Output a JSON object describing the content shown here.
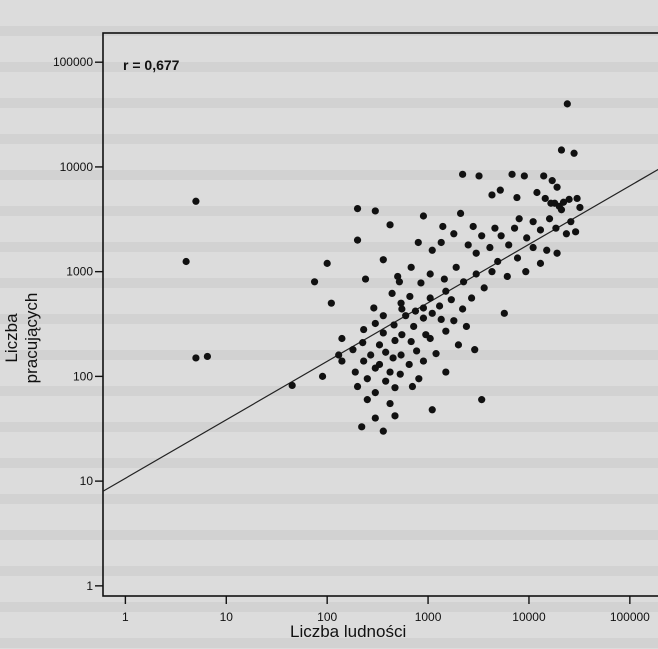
{
  "chart_data": {
    "type": "scatter",
    "xlabel": "Liczba ludności",
    "ylabel": "Liczba pracujących",
    "annotation": "r = 0,677",
    "x_scale": "log",
    "y_scale": "log",
    "xlim": [
      0.6,
      250000
    ],
    "ylim": [
      0.8,
      190000
    ],
    "x_ticks": [
      1,
      10,
      100,
      1000,
      10000,
      100000
    ],
    "x_tick_labels": [
      "1",
      "10",
      "100",
      "1000",
      "10000",
      "100000"
    ],
    "y_ticks": [
      1,
      10,
      100,
      1000,
      10000,
      100000
    ],
    "y_tick_labels": [
      "1",
      "10",
      "100",
      "1000",
      "10000",
      "100000"
    ],
    "trendline": {
      "x": [
        0.6,
        250000
      ],
      "y": [
        8,
        11000
      ]
    },
    "points": [
      [
        24000,
        40000
      ],
      [
        21000,
        14500
      ],
      [
        28000,
        13500
      ],
      [
        5,
        4700
      ],
      [
        4,
        1250
      ],
      [
        5,
        150
      ],
      [
        6.5,
        155
      ],
      [
        45,
        82
      ],
      [
        2200,
        8500
      ],
      [
        3200,
        8200
      ],
      [
        6800,
        8500
      ],
      [
        9000,
        8200
      ],
      [
        14000,
        8200
      ],
      [
        17000,
        7400
      ],
      [
        19000,
        6400
      ],
      [
        5200,
        6000
      ],
      [
        4300,
        5400
      ],
      [
        7600,
        5100
      ],
      [
        12000,
        5700
      ],
      [
        14500,
        5000
      ],
      [
        16500,
        4500
      ],
      [
        18000,
        4500
      ],
      [
        20000,
        4200
      ],
      [
        22000,
        4600
      ],
      [
        25000,
        4900
      ],
      [
        30000,
        5000
      ],
      [
        21000,
        3900
      ],
      [
        32000,
        4100
      ],
      [
        200,
        4000
      ],
      [
        300,
        3800
      ],
      [
        2100,
        3600
      ],
      [
        900,
        3400
      ],
      [
        8000,
        3200
      ],
      [
        11000,
        3000
      ],
      [
        16000,
        3200
      ],
      [
        26000,
        3000
      ],
      [
        420,
        2800
      ],
      [
        1400,
        2700
      ],
      [
        2800,
        2700
      ],
      [
        4600,
        2600
      ],
      [
        7200,
        2600
      ],
      [
        13000,
        2500
      ],
      [
        18500,
        2600
      ],
      [
        23500,
        2300
      ],
      [
        29000,
        2400
      ],
      [
        1800,
        2300
      ],
      [
        3400,
        2200
      ],
      [
        5300,
        2200
      ],
      [
        9500,
        2100
      ],
      [
        200,
        2000
      ],
      [
        800,
        1900
      ],
      [
        1350,
        1900
      ],
      [
        2500,
        1800
      ],
      [
        4100,
        1700
      ],
      [
        6300,
        1800
      ],
      [
        11000,
        1700
      ],
      [
        15000,
        1600
      ],
      [
        19000,
        1500
      ],
      [
        1100,
        1600
      ],
      [
        3000,
        1500
      ],
      [
        7700,
        1350
      ],
      [
        4900,
        1250
      ],
      [
        13000,
        1200
      ],
      [
        360,
        1300
      ],
      [
        100,
        1200
      ],
      [
        680,
        1100
      ],
      [
        1900,
        1100
      ],
      [
        4300,
        1000
      ],
      [
        9300,
        1000
      ],
      [
        1050,
        950
      ],
      [
        3000,
        950
      ],
      [
        6100,
        900
      ],
      [
        240,
        850
      ],
      [
        500,
        900
      ],
      [
        1450,
        850
      ],
      [
        75,
        800
      ],
      [
        520,
        800
      ],
      [
        850,
        780
      ],
      [
        2250,
        800
      ],
      [
        1500,
        650
      ],
      [
        3600,
        700
      ],
      [
        440,
        620
      ],
      [
        660,
        580
      ],
      [
        1050,
        560
      ],
      [
        1700,
        540
      ],
      [
        2700,
        560
      ],
      [
        540,
        500
      ],
      [
        900,
        450
      ],
      [
        1300,
        470
      ],
      [
        2200,
        440
      ],
      [
        290,
        450
      ],
      [
        550,
        440
      ],
      [
        750,
        420
      ],
      [
        1100,
        400
      ],
      [
        5700,
        400
      ],
      [
        360,
        380
      ],
      [
        600,
        380
      ],
      [
        900,
        360
      ],
      [
        1350,
        350
      ],
      [
        1800,
        340
      ],
      [
        300,
        320
      ],
      [
        460,
        310
      ],
      [
        720,
        300
      ],
      [
        2400,
        300
      ],
      [
        230,
        280
      ],
      [
        360,
        260
      ],
      [
        550,
        250
      ],
      [
        950,
        250
      ],
      [
        1500,
        270
      ],
      [
        140,
        230
      ],
      [
        225,
        210
      ],
      [
        330,
        200
      ],
      [
        470,
        220
      ],
      [
        680,
        215
      ],
      [
        1050,
        230
      ],
      [
        2000,
        200
      ],
      [
        180,
        180
      ],
      [
        270,
        160
      ],
      [
        380,
        170
      ],
      [
        540,
        160
      ],
      [
        770,
        175
      ],
      [
        1200,
        165
      ],
      [
        2900,
        180
      ],
      [
        140,
        140
      ],
      [
        230,
        140
      ],
      [
        330,
        130
      ],
      [
        450,
        150
      ],
      [
        650,
        130
      ],
      [
        900,
        140
      ],
      [
        190,
        110
      ],
      [
        300,
        120
      ],
      [
        420,
        110
      ],
      [
        250,
        95
      ],
      [
        380,
        90
      ],
      [
        530,
        105
      ],
      [
        810,
        95
      ],
      [
        1500,
        110
      ],
      [
        200,
        80
      ],
      [
        300,
        70
      ],
      [
        470,
        78
      ],
      [
        700,
        80
      ],
      [
        250,
        60
      ],
      [
        420,
        55
      ],
      [
        3400,
        60
      ],
      [
        1100,
        48
      ],
      [
        300,
        40
      ],
      [
        470,
        42
      ],
      [
        220,
        33
      ],
      [
        360,
        30
      ],
      [
        90,
        100
      ],
      [
        130,
        160
      ],
      [
        110,
        500
      ]
    ]
  }
}
